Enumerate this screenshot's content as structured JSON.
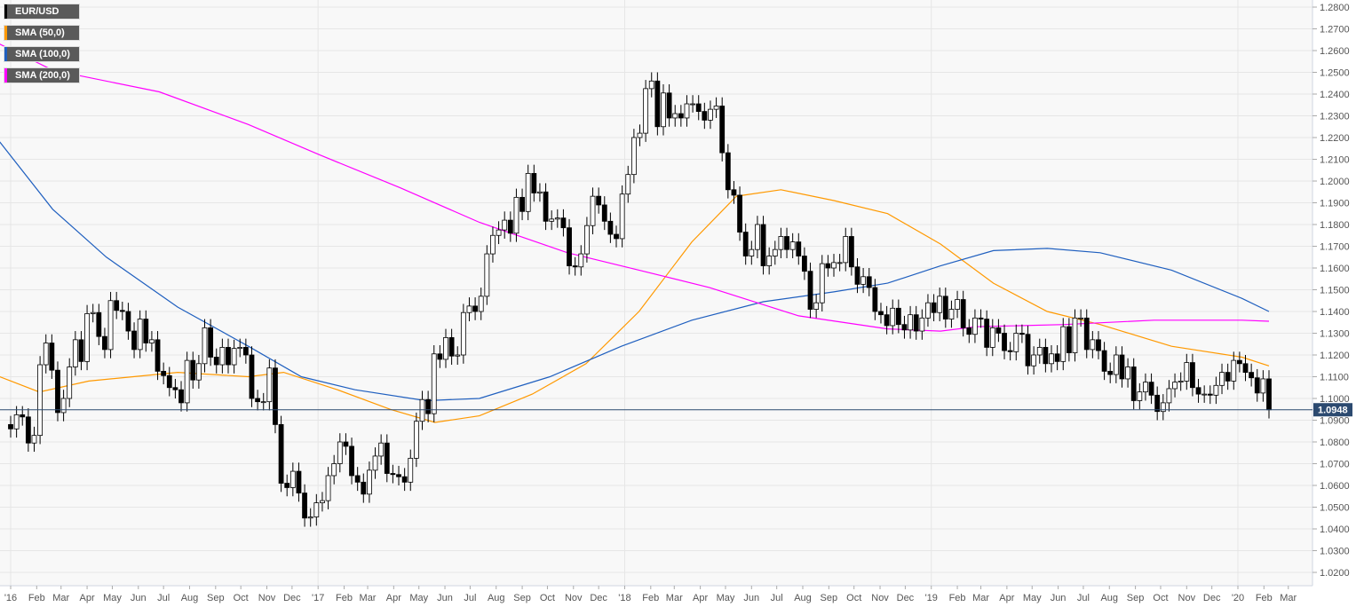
{
  "legend": [
    {
      "label": "EUR/USD",
      "color": "#000000"
    },
    {
      "label": "SMA (50,0)",
      "color": "#ff9900"
    },
    {
      "label": "SMA (100,0)",
      "color": "#1f5fbf"
    },
    {
      "label": "SMA (200,0)",
      "color": "#ff00ff"
    }
  ],
  "chart_data": {
    "type": "candlestick",
    "symbol": "EUR/USD",
    "interval": "weekly",
    "first_week": "2016-01-01",
    "closes": [
      1.086,
      1.0925,
      1.0915,
      1.0795,
      1.083,
      1.1155,
      1.1255,
      1.113,
      1.0935,
      1.1,
      1.1145,
      1.127,
      1.117,
      1.139,
      1.1395,
      1.1285,
      1.1225,
      1.145,
      1.1405,
      1.14,
      1.131,
      1.1225,
      1.1365,
      1.1255,
      1.127,
      1.1125,
      1.1105,
      1.105,
      1.104,
      1.098,
      1.1175,
      1.1085,
      1.116,
      1.1325,
      1.119,
      1.1155,
      1.1235,
      1.1155,
      1.123,
      1.1235,
      1.12,
      1.1,
      1.0985,
      1.0985,
      1.114,
      1.088,
      1.061,
      1.059,
      1.0665,
      1.0565,
      1.045,
      1.0455,
      1.052,
      1.053,
      1.0645,
      1.07,
      1.08,
      1.078,
      1.0645,
      1.0615,
      1.056,
      1.067,
      1.0735,
      1.0795,
      1.0655,
      1.065,
      1.064,
      1.0615,
      1.0725,
      1.0895,
      1.0995,
      1.093,
      1.1205,
      1.118,
      1.128,
      1.1195,
      1.12,
      1.1395,
      1.1425,
      1.14,
      1.147,
      1.1665,
      1.175,
      1.1775,
      1.182,
      1.176,
      1.1925,
      1.186,
      1.2035,
      1.1945,
      1.195,
      1.1815,
      1.1825,
      1.183,
      1.1785,
      1.161,
      1.1605,
      1.1665,
      1.1795,
      1.193,
      1.189,
      1.1815,
      1.1755,
      1.1735,
      1.194,
      1.203,
      1.22,
      1.222,
      1.2425,
      1.246,
      1.225,
      1.2405,
      1.229,
      1.231,
      1.229,
      1.2355,
      1.2355,
      1.232,
      1.228,
      1.233,
      1.2345,
      1.213,
      1.196,
      1.1935,
      1.1765,
      1.1655,
      1.1685,
      1.18,
      1.161,
      1.1655,
      1.1685,
      1.1745,
      1.1685,
      1.172,
      1.1655,
      1.1585,
      1.141,
      1.144,
      1.162,
      1.16,
      1.1625,
      1.1625,
      1.1745,
      1.1605,
      1.1525,
      1.156,
      1.151,
      1.14,
      1.1385,
      1.1335,
      1.1415,
      1.134,
      1.1315,
      1.1385,
      1.131,
      1.137,
      1.144,
      1.1395,
      1.147,
      1.1365,
      1.141,
      1.1455,
      1.1325,
      1.1295,
      1.137,
      1.1365,
      1.1235,
      1.1325,
      1.13,
      1.122,
      1.1215,
      1.13,
      1.1295,
      1.115,
      1.12,
      1.1235,
      1.116,
      1.1205,
      1.117,
      1.133,
      1.121,
      1.137,
      1.137,
      1.1225,
      1.127,
      1.122,
      1.1125,
      1.111,
      1.12,
      1.109,
      1.1145,
      1.099,
      1.103,
      1.1075,
      1.1015,
      1.094,
      1.098,
      1.1045,
      1.1075,
      1.108,
      1.1165,
      1.105,
      1.102,
      1.102,
      1.1015,
      1.106,
      1.112,
      1.108,
      1.1175,
      1.116,
      1.112,
      1.1095,
      1.1025,
      1.109,
      1.0948
    ],
    "sma": [
      {
        "label": "SMA (50,0)",
        "color": "#ff9900",
        "points": [
          [
            "2015-12-19",
            1.11
          ],
          [
            "2016-02-04",
            1.103
          ],
          [
            "2016-04-03",
            1.108
          ],
          [
            "2016-07-18",
            1.112
          ],
          [
            "2016-10-10",
            1.11
          ],
          [
            "2016-11-21",
            1.112
          ],
          [
            "2017-01-24",
            1.104
          ],
          [
            "2017-03-28",
            1.095
          ],
          [
            "2017-05-20",
            1.089
          ],
          [
            "2017-07-12",
            1.092
          ],
          [
            "2017-09-13",
            1.102
          ],
          [
            "2017-11-16",
            1.116
          ],
          [
            "2018-01-18",
            1.14
          ],
          [
            "2018-03-22",
            1.172
          ],
          [
            "2018-05-14",
            1.193
          ],
          [
            "2018-07-06",
            1.196
          ],
          [
            "2018-09-07",
            1.191
          ],
          [
            "2018-11-10",
            1.185
          ],
          [
            "2019-01-12",
            1.171
          ],
          [
            "2019-03-16",
            1.153
          ],
          [
            "2019-05-19",
            1.14
          ],
          [
            "2019-07-21",
            1.134
          ],
          [
            "2019-10-14",
            1.124
          ],
          [
            "2020-01-06",
            1.119
          ],
          [
            "2020-02-07",
            1.115
          ]
        ]
      },
      {
        "label": "SMA (100,0)",
        "color": "#1f5fbf",
        "points": [
          [
            "2015-12-19",
            1.218
          ],
          [
            "2016-02-20",
            1.187
          ],
          [
            "2016-04-24",
            1.165
          ],
          [
            "2016-07-18",
            1.142
          ],
          [
            "2016-10-10",
            1.124
          ],
          [
            "2016-12-12",
            1.11
          ],
          [
            "2017-02-14",
            1.104
          ],
          [
            "2017-05-09",
            1.099
          ],
          [
            "2017-07-12",
            1.1
          ],
          [
            "2017-10-04",
            1.11
          ],
          [
            "2017-12-28",
            1.124
          ],
          [
            "2018-03-22",
            1.136
          ],
          [
            "2018-06-15",
            1.1445
          ],
          [
            "2018-09-07",
            1.149
          ],
          [
            "2018-11-10",
            1.153
          ],
          [
            "2019-01-12",
            1.161
          ],
          [
            "2019-03-16",
            1.168
          ],
          [
            "2019-05-19",
            1.169
          ],
          [
            "2019-07-21",
            1.167
          ],
          [
            "2019-10-14",
            1.159
          ],
          [
            "2020-01-06",
            1.146
          ],
          [
            "2020-02-07",
            1.14
          ]
        ]
      },
      {
        "label": "SMA (200,0)",
        "color": "#ff00ff",
        "points": [
          [
            "2015-12-19",
            1.263
          ],
          [
            "2016-02-20",
            1.251
          ],
          [
            "2016-06-26",
            1.241
          ],
          [
            "2016-10-10",
            1.226
          ],
          [
            "2017-01-03",
            1.212
          ],
          [
            "2017-04-08",
            1.197
          ],
          [
            "2017-07-12",
            1.181
          ],
          [
            "2017-10-25",
            1.167
          ],
          [
            "2018-01-18",
            1.159
          ],
          [
            "2018-04-12",
            1.151
          ],
          [
            "2018-07-27",
            1.138
          ],
          [
            "2018-11-10",
            1.132
          ],
          [
            "2019-01-12",
            1.131
          ],
          [
            "2019-02-23",
            1.133
          ],
          [
            "2019-06-09",
            1.134
          ],
          [
            "2019-09-23",
            1.136
          ],
          [
            "2020-01-06",
            1.136
          ],
          [
            "2020-02-07",
            1.1355
          ]
        ]
      }
    ],
    "y_ticks": [
      "1.0200",
      "1.0300",
      "1.0400",
      "1.0500",
      "1.0600",
      "1.0700",
      "1.0800",
      "1.0900",
      "1.1000",
      "1.1100",
      "1.1200",
      "1.1300",
      "1.1400",
      "1.1500",
      "1.1600",
      "1.1700",
      "1.1800",
      "1.1900",
      "1.2000",
      "1.2100",
      "1.2200",
      "1.2300",
      "1.2400",
      "1.2500",
      "1.2600",
      "1.2700",
      "1.2800"
    ],
    "ylim": [
      1.02,
      1.28
    ],
    "x_ticks": [
      "'16",
      "Feb",
      "Mar",
      "Apr",
      "May",
      "Jun",
      "Jul",
      "Aug",
      "Sep",
      "Oct",
      "Nov",
      "Dec",
      "'17",
      "Feb",
      "Mar",
      "Apr",
      "May",
      "Jun",
      "Jul",
      "Aug",
      "Sep",
      "Oct",
      "Nov",
      "Dec",
      "'18",
      "Feb",
      "Mar",
      "Apr",
      "May",
      "Jun",
      "Jul",
      "Aug",
      "Sep",
      "Oct",
      "Nov",
      "Dec",
      "'19",
      "Feb",
      "Mar",
      "Apr",
      "May",
      "Jun",
      "Jul",
      "Aug",
      "Sep",
      "Oct",
      "Nov",
      "Dec",
      "'20",
      "Feb",
      "Mar"
    ],
    "x_start": "2016-01",
    "current_price": {
      "label": "1.0948",
      "value": 1.0948,
      "color": "#2c4a70"
    },
    "grid": true,
    "legend_position": "top-left"
  }
}
